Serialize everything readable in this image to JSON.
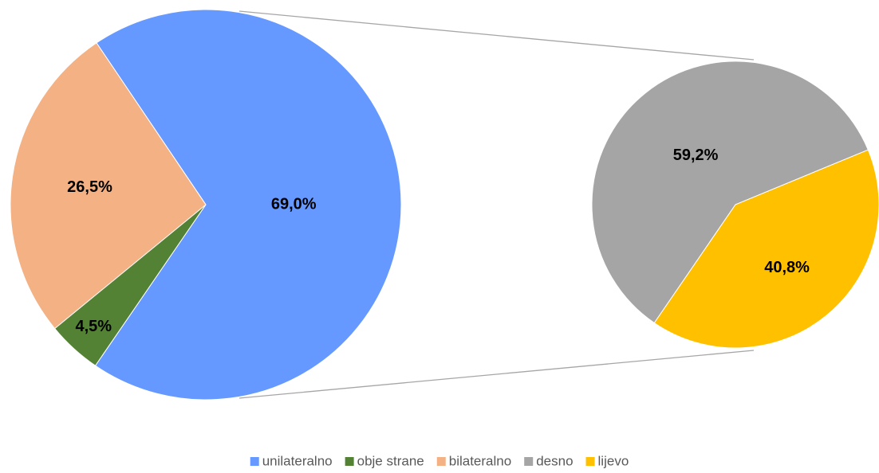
{
  "chart_data": [
    {
      "type": "pie",
      "categories": [
        "unilateralno",
        "obje strane",
        "bilateralno"
      ],
      "values": [
        69.0,
        4.5,
        26.5
      ],
      "value_labels": [
        "69,0%",
        "4,5%",
        "26,5%"
      ],
      "colors": [
        "#6699ff",
        "#548235",
        "#f4b183"
      ]
    },
    {
      "type": "pie",
      "categories": [
        "desno",
        "lijevo"
      ],
      "values": [
        59.2,
        40.8
      ],
      "value_labels": [
        "59,2%",
        "40,8%"
      ],
      "colors": [
        "#a5a5a5",
        "#ffc000"
      ]
    }
  ]
}
